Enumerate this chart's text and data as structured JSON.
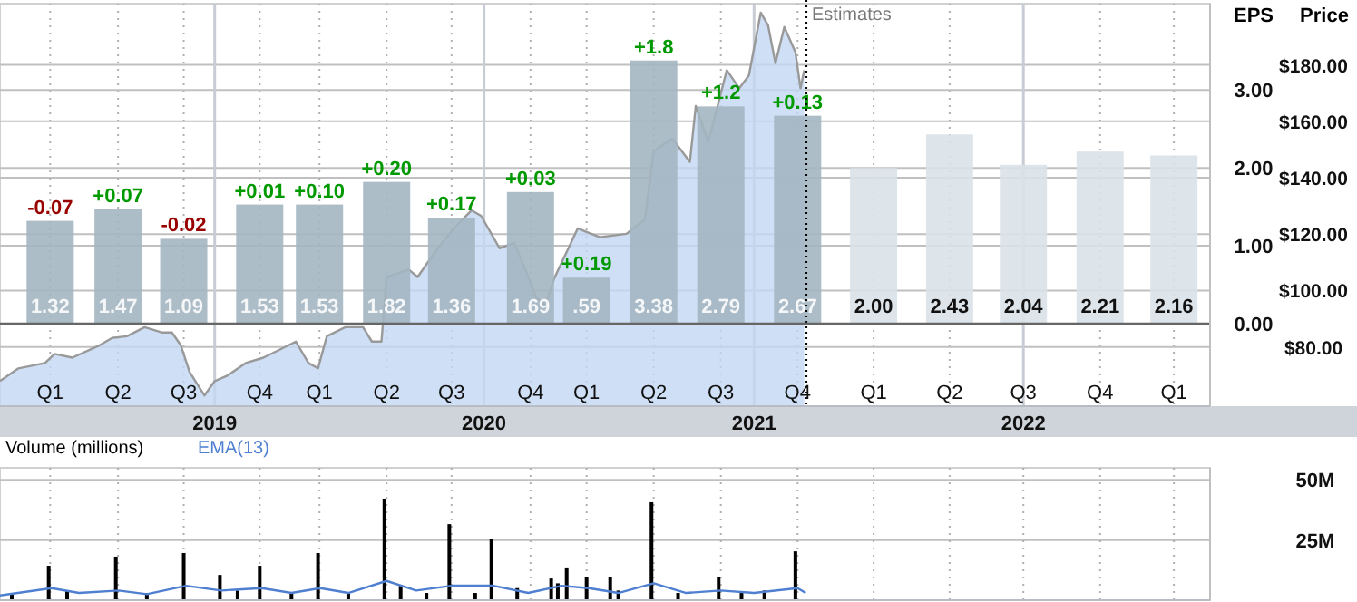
{
  "chart_data": [
    {
      "type": "bar",
      "ylabel": "EPS",
      "y2label": "Price",
      "grid": true,
      "xlim": [
        "2018-03-16",
        "2022-09-11"
      ],
      "xticks": [
        {
          "value": "2018-05-23",
          "label": "Q1"
        },
        {
          "value": "2018-08-23",
          "label": "Q2"
        },
        {
          "value": "2018-11-20",
          "label": "Q3"
        },
        {
          "value": "2019-03-03",
          "label": "Q4"
        },
        {
          "value": "2019-05-23",
          "label": "Q1"
        },
        {
          "value": "2019-08-22",
          "label": "Q2"
        },
        {
          "value": "2019-11-18",
          "label": "Q3"
        },
        {
          "value": "2020-03-04",
          "label": "Q4"
        },
        {
          "value": "2020-05-19",
          "label": "Q1"
        },
        {
          "value": "2020-08-18",
          "label": "Q2"
        },
        {
          "value": "2020-11-17",
          "label": "Q3"
        },
        {
          "value": "2021-03-01",
          "label": "Q4"
        },
        {
          "value": "2021-06-12",
          "label": "Q1"
        },
        {
          "value": "2021-09-23",
          "label": "Q2"
        },
        {
          "value": "2022-01-01",
          "label": "Q3"
        },
        {
          "value": "2022-04-15",
          "label": "Q4"
        },
        {
          "value": "2022-07-24",
          "label": "Q1"
        }
      ],
      "x2lim": [
        "2018-03-16",
        "2022-09-11"
      ],
      "x2ticks": [
        {
          "value": "2019-01-01",
          "label": "2019"
        },
        {
          "value": "2020-01-01",
          "label": "2020"
        },
        {
          "value": "2021-01-01",
          "label": "2021"
        },
        {
          "value": "2022-01-01",
          "label": "2022"
        }
      ],
      "ylim": [
        -1.06,
        4.11
      ],
      "yticks": [
        {
          "value": 0,
          "label": "0.00"
        },
        {
          "value": 1,
          "label": "1.00"
        },
        {
          "value": 2,
          "label": "2.00"
        },
        {
          "value": 3,
          "label": "3.00"
        }
      ],
      "y2lim": [
        59,
        201.7
      ],
      "y2ticks": [
        {
          "value": 80,
          "label": "$80.00"
        },
        {
          "value": 100,
          "label": "$100.00"
        },
        {
          "value": 120,
          "label": "$120.00"
        },
        {
          "value": 140,
          "label": "$140.00"
        },
        {
          "value": 160,
          "label": "$160.00"
        },
        {
          "value": 180,
          "label": "$180.00"
        }
      ],
      "ref_lines": [
        {
          "axis": "x",
          "value": "2021-03-13",
          "label": "Estimates",
          "color": "#000000",
          "line_style": "dotted"
        }
      ],
      "annotations": [
        "-0.07",
        "+0.07",
        "-0.02",
        "+0.01",
        "+0.10",
        "+0.20",
        "+0.17",
        "+0.03",
        "+0.19",
        "+1.8",
        "+1.2",
        "+0.13"
      ],
      "series": [
        {
          "type": "area",
          "axis": "y2",
          "color": "#c3d7f2",
          "x": [
            "2018-03-16",
            "2018-04-10",
            "2018-05-16",
            "2018-05-29",
            "2018-06-22",
            "2018-07-29",
            "2018-08-15",
            "2018-09-04",
            "2018-09-28",
            "2018-10-22",
            "2018-11-04",
            "2018-11-16",
            "2018-11-28",
            "2018-12-18",
            "2019-01-01",
            "2019-01-18",
            "2019-02-12",
            "2019-03-08",
            "2019-04-02",
            "2019-04-21",
            "2019-05-08",
            "2019-05-21",
            "2019-06-02",
            "2019-06-27",
            "2019-07-21",
            "2019-08-02",
            "2019-08-15",
            "2019-08-22",
            "2019-09-21",
            "2019-10-03",
            "2019-10-27",
            "2019-11-21",
            "2019-12-15",
            "2019-12-28",
            "2020-01-22",
            "2020-02-11",
            "2020-02-28",
            "2020-03-11",
            "2020-03-24",
            "2020-04-05",
            "2020-05-07",
            "2020-06-06",
            "2020-07-12",
            "2020-08-06",
            "2020-08-18",
            "2020-09-12",
            "2020-10-06",
            "2020-10-14",
            "2020-10-31",
            "2020-11-25",
            "2020-12-12",
            "2020-12-25",
            "2021-01-10",
            "2021-01-20",
            "2021-01-30",
            "2021-02-11",
            "2021-02-26",
            "2021-03-05",
            "2021-03-10"
          ],
          "values": [
            67.9,
            72.4,
            74.3,
            77.5,
            76.2,
            80.6,
            83.2,
            83.8,
            87.0,
            85.1,
            85.1,
            80.6,
            71.1,
            62.8,
            67.9,
            69.8,
            74.3,
            76.2,
            79.4,
            81.9,
            74.3,
            72.4,
            83.8,
            87.0,
            87.0,
            81.9,
            81.9,
            104.8,
            107.4,
            104.8,
            113.8,
            122.0,
            128.4,
            126.5,
            115.0,
            116.9,
            106.1,
            97.8,
            94.6,
            104.2,
            122.0,
            118.9,
            120.1,
            125.2,
            149.4,
            153.9,
            145.6,
            165.4,
            152.6,
            178.1,
            171.7,
            176.2,
            198.5,
            194.0,
            180.6,
            193.4,
            184.5,
            171.7,
            178.1
          ]
        },
        {
          "x": [
            "2018-05-23",
            "2018-08-23",
            "2018-11-20",
            "2019-03-03",
            "2019-05-23",
            "2019-08-22",
            "2019-11-18",
            "2020-03-04",
            "2020-05-19",
            "2020-08-18",
            "2020-11-17",
            "2021-03-01",
            "2021-06-12",
            "2021-09-23",
            "2022-01-01",
            "2022-04-15",
            "2022-07-24"
          ],
          "values": [
            1.32,
            1.47,
            1.09,
            1.53,
            1.53,
            1.82,
            1.36,
            1.69,
            0.59,
            3.38,
            2.79,
            2.67,
            2.0,
            2.43,
            2.04,
            2.21,
            2.16
          ],
          "value_labels": [
            "1.32",
            "1.47",
            "1.09",
            "1.53",
            "1.53",
            "1.82",
            "1.36",
            "1.69",
            ".59",
            "3.38",
            "2.79",
            "2.67",
            "2.00",
            "2.43",
            "2.04",
            "2.21",
            "2.16"
          ],
          "colors": [
            "#a3b6c2",
            "#a3b6c2",
            "#a3b6c2",
            "#a3b6c2",
            "#a3b6c2",
            "#a3b6c2",
            "#a3b6c2",
            "#a3b6c2",
            "#a3b6c2",
            "#a3b6c2",
            "#a3b6c2",
            "#a3b6c2",
            "#dae2e8",
            "#dae2e8",
            "#dae2e8",
            "#dae2e8",
            "#dae2e8"
          ]
        }
      ]
    },
    {
      "type": "bar",
      "ylabel": "Volume (millions)",
      "grid": true,
      "tick_labels": "y",
      "legend": "top left",
      "xlim": [
        "2018-03-16",
        "2022-09-11"
      ],
      "xticks": [
        {
          "value": "2018-05-23",
          "label": null
        },
        {
          "value": "2018-08-23",
          "label": null
        },
        {
          "value": "2018-11-20",
          "label": null
        },
        {
          "value": "2019-03-03",
          "label": null
        },
        {
          "value": "2019-05-23",
          "label": null
        },
        {
          "value": "2019-08-22",
          "label": null
        },
        {
          "value": "2019-11-18",
          "label": null
        },
        {
          "value": "2020-03-04",
          "label": null
        },
        {
          "value": "2020-05-19",
          "label": null
        },
        {
          "value": "2020-08-18",
          "label": null
        },
        {
          "value": "2020-11-17",
          "label": null
        },
        {
          "value": "2021-03-01",
          "label": null
        },
        {
          "value": "2021-06-12",
          "label": null
        },
        {
          "value": "2021-09-23",
          "label": null
        },
        {
          "value": "2022-01-01",
          "label": null
        },
        {
          "value": "2022-04-15",
          "label": null
        },
        {
          "value": "2022-07-24",
          "label": null
        }
      ],
      "ylim": [
        0,
        55
      ],
      "yticks": [
        {
          "value": 25,
          "label": "25M"
        },
        {
          "value": 50,
          "label": "50M"
        }
      ],
      "series": [
        {
          "color": "#000000",
          "x": [
            "2018-04-01",
            "2018-05-21",
            "2018-06-15",
            "2018-08-20",
            "2018-10-01",
            "2018-11-20",
            "2019-01-08",
            "2019-02-01",
            "2019-03-03",
            "2019-04-15",
            "2019-05-21",
            "2019-07-01",
            "2019-08-19",
            "2019-09-10",
            "2019-10-15",
            "2019-11-15",
            "2019-12-20",
            "2020-01-11",
            "2020-02-15",
            "2020-04-01",
            "2020-04-10",
            "2020-04-22",
            "2020-05-19",
            "2020-06-20",
            "2020-07-01",
            "2020-08-15",
            "2020-09-20",
            "2020-11-14",
            "2020-12-15",
            "2021-01-15",
            "2021-02-26"
          ],
          "values": [
            3,
            14.3,
            4,
            18.1,
            3,
            19.6,
            10.5,
            4,
            14.3,
            3,
            19.6,
            3,
            42.2,
            6,
            3,
            31.6,
            3,
            25.6,
            5,
            9,
            7,
            13.6,
            9.8,
            9.8,
            4,
            40.7,
            3,
            9.8,
            3,
            4,
            20.3
          ]
        },
        {
          "type": "line",
          "name": "EMA(13)",
          "color": "#4f7fd0",
          "x": [
            "2018-03-16",
            "2018-05-25",
            "2018-07-01",
            "2018-08-24",
            "2018-10-01",
            "2018-11-23",
            "2019-01-10",
            "2019-03-06",
            "2019-04-15",
            "2019-05-24",
            "2019-07-01",
            "2019-08-22",
            "2019-10-01",
            "2019-11-18",
            "2020-01-14",
            "2020-03-01",
            "2020-04-15",
            "2020-05-22",
            "2020-07-01",
            "2020-08-18",
            "2020-10-01",
            "2020-11-17",
            "2021-01-01",
            "2021-03-01",
            "2021-03-12"
          ],
          "values": [
            2,
            5,
            3,
            4,
            2.5,
            6,
            4,
            5,
            3,
            5,
            3,
            8,
            4,
            6,
            6,
            3,
            6,
            5,
            3,
            7,
            3,
            4,
            3,
            5,
            3
          ]
        }
      ]
    }
  ]
}
